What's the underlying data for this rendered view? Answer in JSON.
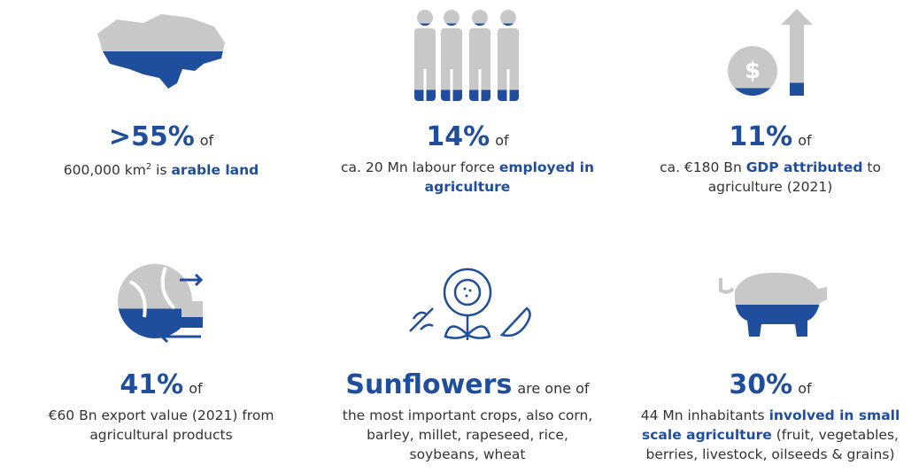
{
  "cards": [
    {
      "headline": ">55%",
      "connector": "of",
      "description": [
        {
          "text": "600,000 km",
          "style": "plain"
        },
        {
          "text": "2",
          "style": "sup"
        },
        {
          "text": " is ",
          "style": "plain"
        },
        {
          "text": "arable land",
          "style": "bold"
        }
      ]
    },
    {
      "headline": "14%",
      "connector": "of",
      "description": [
        {
          "text": "ca. 20 Mn labour force ",
          "style": "plain"
        },
        {
          "text": "employed in agriculture",
          "style": "bold"
        }
      ]
    },
    {
      "headline": "11%",
      "connector": "of",
      "description": [
        {
          "text": "ca. €180 Bn ",
          "style": "plain"
        },
        {
          "text": "GDP attributed",
          "style": "bold"
        },
        {
          "text": " to agriculture (2021)",
          "style": "plain"
        }
      ]
    },
    {
      "headline": "41%",
      "connector": "of",
      "description": [
        {
          "text": "€60 Bn export value (2021) from agricultural products",
          "style": "plain"
        }
      ]
    },
    {
      "headline": "Sunflowers",
      "connector": "are one of",
      "description": [
        {
          "text": "the most important crops, also corn, barley, millet, rapeseed, rice, soybeans, wheat",
          "style": "plain"
        }
      ]
    },
    {
      "headline": "30%",
      "connector": "of",
      "description": [
        {
          "text": "44 Mn inhabitants ",
          "style": "plain"
        },
        {
          "text": "involved in small scale agriculture",
          "style": "bold"
        },
        {
          "text": " (fruit, vegetables, berries, livestock, oilseeds & grains)",
          "style": "plain"
        }
      ]
    }
  ]
}
